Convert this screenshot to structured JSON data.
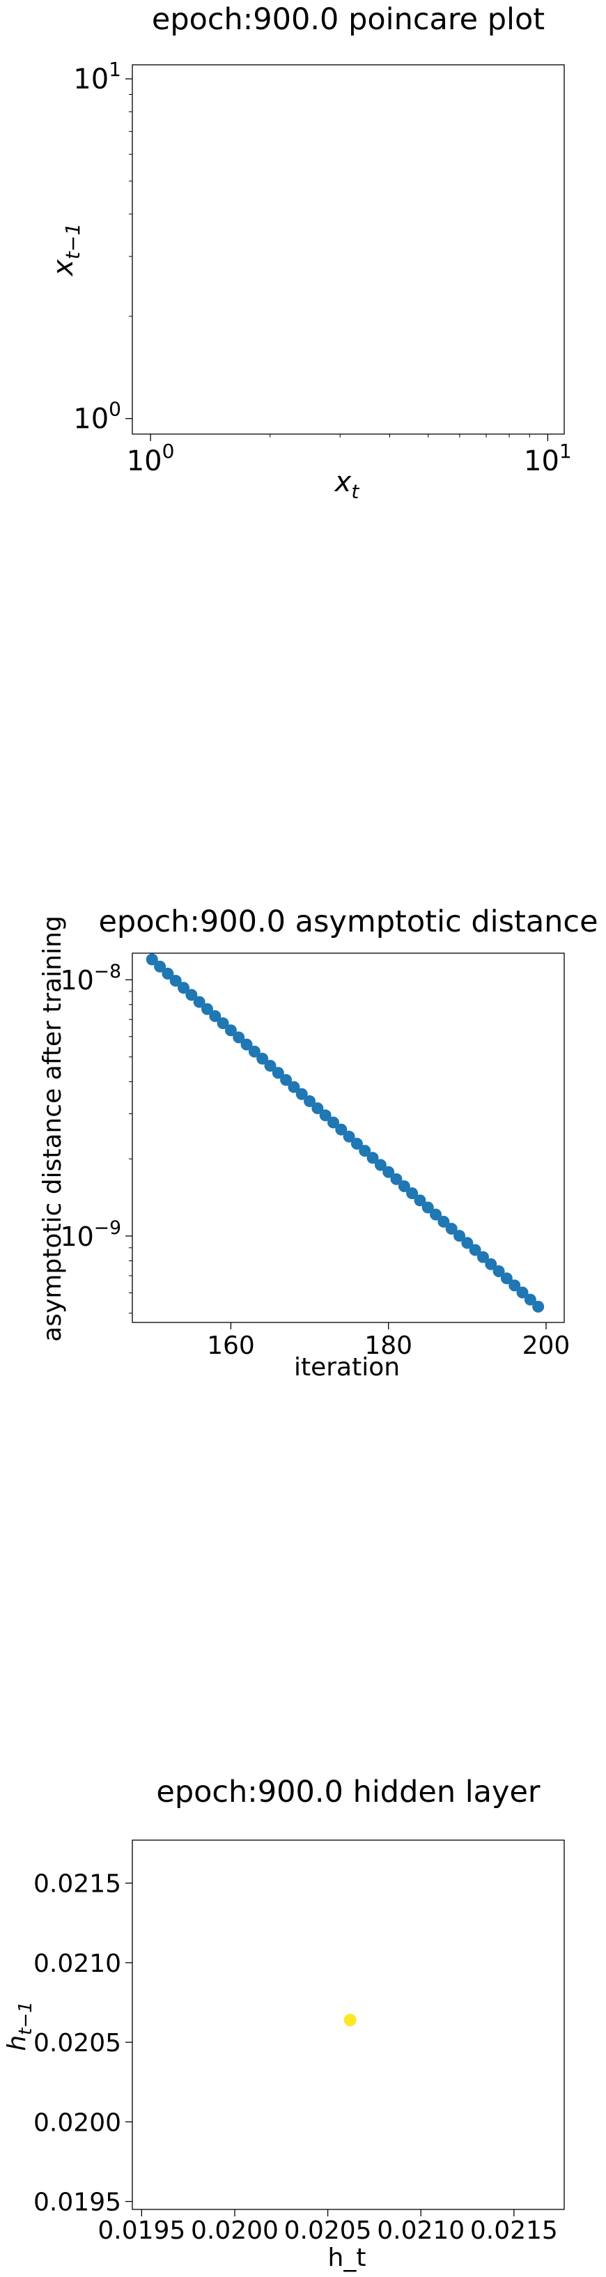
{
  "chart_data": [
    {
      "type": "scatter",
      "title": "epoch:900.0 poincare plot",
      "xlabel": "x",
      "xlabel_sub": "t",
      "ylabel": "x",
      "ylabel_sub": "t−1",
      "xscale": "log",
      "yscale": "log",
      "xlim": [
        0.9,
        11
      ],
      "ylim": [
        0.9,
        11
      ],
      "xticks": [
        {
          "value": 1,
          "base": "10",
          "exp": "0"
        },
        {
          "value": 10,
          "base": "10",
          "exp": "1"
        }
      ],
      "yticks": [
        {
          "value": 1,
          "base": "10",
          "exp": "0"
        },
        {
          "value": 10,
          "base": "10",
          "exp": "1"
        }
      ],
      "points": [],
      "grid": false
    },
    {
      "type": "scatter",
      "title": "epoch:900.0 asymptotic distance",
      "xlabel": "iteration",
      "ylabel": "asymptotic distance after training",
      "yscale": "log",
      "xlim": [
        147.5,
        202.3
      ],
      "ylim": [
        4.6e-10,
        1.27e-08
      ],
      "xticks": [
        {
          "value": 160,
          "label": "160"
        },
        {
          "value": 180,
          "label": "180"
        },
        {
          "value": 200,
          "label": "200"
        }
      ],
      "yticks": [
        {
          "value": 1e-08,
          "base": "10",
          "exp": "−8"
        },
        {
          "value": 1e-09,
          "base": "10",
          "exp": "−9"
        }
      ],
      "color": "#1f77b4",
      "x_start": 150,
      "x_end": 199,
      "y_start": 1.2e-08,
      "y_end": 5.3e-10,
      "grid": false
    },
    {
      "type": "scatter",
      "title": "epoch:900.0 hidden layer",
      "xlabel": "h_t",
      "ylabel": "h",
      "ylabel_sub": "t−1",
      "xlim": [
        0.01945,
        0.02177
      ],
      "ylim": [
        0.01945,
        0.02177
      ],
      "xticks": [
        {
          "value": 0.0195,
          "label": "0.0195"
        },
        {
          "value": 0.02,
          "label": "0.0200"
        },
        {
          "value": 0.0205,
          "label": "0.0205"
        },
        {
          "value": 0.021,
          "label": "0.0210"
        },
        {
          "value": 0.0215,
          "label": "0.0215"
        }
      ],
      "yticks": [
        {
          "value": 0.0195,
          "label": "0.0195"
        },
        {
          "value": 0.02,
          "label": "0.0200"
        },
        {
          "value": 0.0205,
          "label": "0.0205"
        },
        {
          "value": 0.021,
          "label": "0.0210"
        },
        {
          "value": 0.0215,
          "label": "0.0215"
        }
      ],
      "points": [
        {
          "x": 0.02062,
          "y": 0.02064
        }
      ],
      "color": "#fde725",
      "grid": false
    }
  ]
}
